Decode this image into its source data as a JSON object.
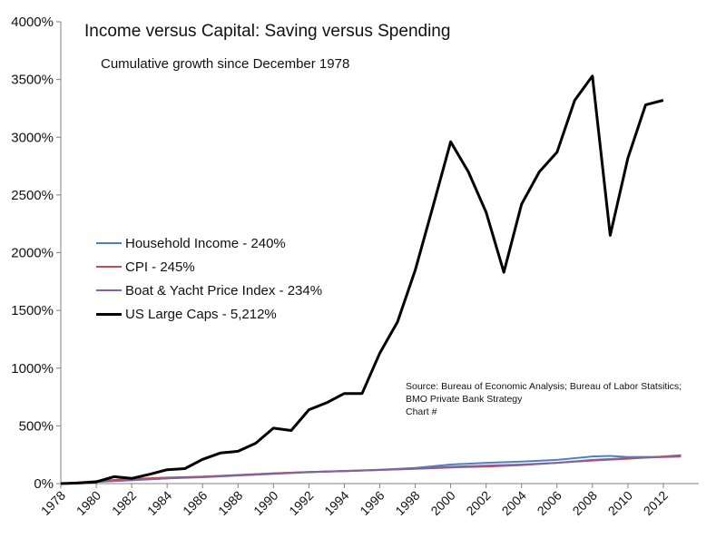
{
  "chart_data": {
    "type": "line",
    "title": "Income versus Capital: Saving versus Spending",
    "subtitle": "Cumulative growth since December 1978",
    "ylim": [
      0,
      4000
    ],
    "xlim": [
      1978,
      2014
    ],
    "y_ticks": [
      "0%",
      "500%",
      "1000%",
      "1500%",
      "2000%",
      "2500%",
      "3000%",
      "3500%",
      "4000%"
    ],
    "x_ticks": [
      "1978",
      "1980",
      "1982",
      "1984",
      "1986",
      "1988",
      "1990",
      "1992",
      "1994",
      "1996",
      "1998",
      "2000",
      "2002",
      "2004",
      "2006",
      "2008",
      "2010",
      "2012"
    ],
    "grid": false,
    "legend_position": "left-middle",
    "series": [
      {
        "name": "Household Income - 240%",
        "color": "#4F81BD",
        "x": [
          1978,
          1980,
          1982,
          1984,
          1986,
          1988,
          1990,
          1992,
          1994,
          1996,
          1998,
          2000,
          2002,
          2004,
          2006,
          2008,
          2009,
          2010,
          2012,
          2013
        ],
        "values": [
          0,
          15,
          30,
          45,
          60,
          75,
          88,
          100,
          110,
          120,
          135,
          165,
          180,
          190,
          205,
          235,
          240,
          230,
          232,
          240
        ]
      },
      {
        "name": "CPI - 245%",
        "color": "#C0504D",
        "x": [
          1978,
          1980,
          1982,
          1984,
          1986,
          1988,
          1990,
          1992,
          1994,
          1996,
          1998,
          2000,
          2002,
          2004,
          2006,
          2008,
          2010,
          2012,
          2013
        ],
        "values": [
          0,
          22,
          40,
          52,
          60,
          72,
          88,
          100,
          108,
          118,
          128,
          140,
          148,
          160,
          180,
          200,
          215,
          235,
          245
        ]
      },
      {
        "name": "Boat & Yacht Price Index - 234%",
        "color": "#8064A2",
        "x": [
          1978,
          1980,
          1982,
          1984,
          1986,
          1988,
          1990,
          1992,
          1994,
          1996,
          1998,
          2000,
          2002,
          2004,
          2006,
          2008,
          2010,
          2012,
          2013
        ],
        "values": [
          0,
          15,
          30,
          45,
          55,
          70,
          85,
          98,
          108,
          118,
          130,
          145,
          155,
          165,
          180,
          205,
          220,
          230,
          234
        ]
      },
      {
        "name": "US Large Caps - 5,212%",
        "color": "#000000",
        "x": [
          1978,
          1979,
          1980,
          1981,
          1982,
          1983,
          1984,
          1985,
          1986,
          1987,
          1988,
          1989,
          1990,
          1991,
          1992,
          1993,
          1994,
          1995,
          1996,
          1997,
          1998,
          1999,
          2000,
          2001,
          2002,
          2003,
          2004,
          2005,
          2006,
          2007,
          2008,
          2009,
          2010,
          2011,
          2012
        ],
        "values": [
          0,
          5,
          15,
          60,
          45,
          80,
          120,
          130,
          210,
          265,
          280,
          350,
          480,
          460,
          640,
          700,
          780,
          780,
          1130,
          1400,
          1850,
          2400,
          2960,
          2700,
          2350,
          1830,
          2420,
          2700,
          2870,
          3320,
          3530,
          2150,
          2820,
          3280,
          3320
        ]
      }
    ],
    "annotation": {
      "lines": [
        "Source: Bureau of Economic Analysis; Bureau of Labor Statsitics;",
        "BMO Private Bank Strategy",
        "Chart #"
      ]
    }
  }
}
